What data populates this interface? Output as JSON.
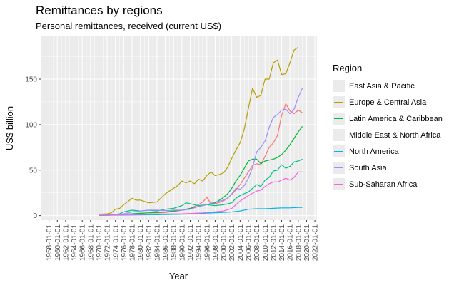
{
  "chart_data": {
    "type": "line",
    "title": "Remittances by regions",
    "subtitle": "Personal remittances, received (current US$)",
    "xlabel": "Year",
    "ylabel": "US$ billion",
    "xlim": [
      1956,
      2022.5
    ],
    "ylim": [
      -5,
      197
    ],
    "x_ticks": [
      "1958-01-01",
      "1960-01-01",
      "1962-01-01",
      "1964-01-01",
      "1966-01-01",
      "1968-01-01",
      "1970-01-01",
      "1972-01-01",
      "1974-01-01",
      "1976-01-01",
      "1978-01-01",
      "1980-01-01",
      "1982-01-01",
      "1984-01-01",
      "1986-01-01",
      "1988-01-01",
      "1990-01-01",
      "1992-01-01",
      "1994-01-01",
      "1996-01-01",
      "1998-01-01",
      "2000-01-01",
      "2002-01-01",
      "2004-01-01",
      "2006-01-01",
      "2008-01-01",
      "2010-01-01",
      "2012-01-01",
      "2014-01-01",
      "2016-01-01",
      "2018-01-01",
      "2020-01-01",
      "2022-01-01"
    ],
    "y_ticks": [
      0,
      50,
      100,
      150
    ],
    "grid": true,
    "legend_title": "Region",
    "legend_position": "right",
    "series": [
      {
        "name": "East Asia & Pacific",
        "color": "#F8766D",
        "x": [
          1970,
          1972,
          1974,
          1976,
          1978,
          1980,
          1982,
          1984,
          1986,
          1988,
          1990,
          1992,
          1994,
          1995,
          1996,
          1997,
          1998,
          2000,
          2002,
          2004,
          2006,
          2007,
          2008,
          2009,
          2010,
          2011,
          2012,
          2013,
          2014,
          2015,
          2016,
          2017,
          2018,
          2019
        ],
        "y": [
          0.2,
          0.3,
          0.6,
          1.2,
          1.8,
          2.5,
          3,
          3,
          3.5,
          4.5,
          6,
          8,
          12,
          15,
          20,
          13,
          13,
          16,
          23,
          34,
          48,
          55,
          57,
          56,
          65,
          75,
          80,
          88,
          110,
          123,
          115,
          112,
          116,
          113
        ]
      },
      {
        "name": "Europe & Central Asia",
        "color": "#B79F00",
        "x": [
          1970,
          1972,
          1973,
          1974,
          1975,
          1976,
          1978,
          1979,
          1980,
          1982,
          1984,
          1986,
          1988,
          1989,
          1990,
          1991,
          1992,
          1993,
          1994,
          1995,
          1996,
          1997,
          1998,
          1999,
          2000,
          2001,
          2002,
          2003,
          2004,
          2005,
          2006,
          2007,
          2008,
          2009,
          2010,
          2011,
          2012,
          2013,
          2014,
          2015,
          2016,
          2017,
          2018
        ],
        "y": [
          1.5,
          2,
          3,
          7,
          8,
          12,
          19,
          17,
          17,
          14,
          15,
          24,
          30,
          33,
          38,
          36,
          38,
          35,
          40,
          38,
          44,
          48,
          44,
          45,
          47,
          53,
          63,
          72,
          80,
          95,
          118,
          140,
          130,
          132,
          150,
          150,
          168,
          171,
          155,
          156,
          168,
          182,
          185
        ]
      },
      {
        "name": "Latin America & Caribbean",
        "color": "#00BA38",
        "x": [
          1970,
          1972,
          1974,
          1976,
          1978,
          1980,
          1982,
          1984,
          1986,
          1988,
          1990,
          1992,
          1994,
          1996,
          1998,
          2000,
          2001,
          2002,
          2003,
          2004,
          2005,
          2006,
          2007,
          2008,
          2009,
          2010,
          2011,
          2012,
          2013,
          2014,
          2015,
          2016,
          2017,
          2018,
          2019
        ],
        "y": [
          0.5,
          0.7,
          1,
          1.5,
          2,
          2.5,
          3,
          3.5,
          4,
          5,
          6,
          8,
          10,
          12,
          14,
          20,
          24,
          30,
          38,
          44,
          52,
          60,
          62,
          62,
          57,
          60,
          61,
          62,
          64,
          67,
          72,
          78,
          85,
          92,
          98
        ]
      },
      {
        "name": "Middle East & North Africa",
        "color": "#00C08B",
        "x": [
          1970,
          1972,
          1974,
          1975,
          1976,
          1977,
          1978,
          1980,
          1982,
          1984,
          1986,
          1988,
          1990,
          1991,
          1992,
          1993,
          1994,
          1996,
          1998,
          2000,
          2002,
          2003,
          2004,
          2006,
          2008,
          2009,
          2010,
          2011,
          2012,
          2013,
          2014,
          2015,
          2016,
          2017,
          2018,
          2019
        ],
        "y": [
          0.3,
          0.5,
          1,
          2,
          4,
          5,
          6,
          5,
          6,
          5,
          7,
          8,
          11,
          14,
          13,
          12,
          11,
          12,
          11,
          12,
          14,
          19,
          22,
          26,
          34,
          32,
          39,
          42,
          49,
          50,
          56,
          52,
          54,
          59,
          60,
          62
        ]
      },
      {
        "name": "North America",
        "color": "#00B4F0",
        "x": [
          1970,
          1975,
          1980,
          1985,
          1990,
          1995,
          2000,
          2002,
          2004,
          2006,
          2008,
          2010,
          2012,
          2014,
          2016,
          2018,
          2019
        ],
        "y": [
          0.3,
          0.5,
          0.8,
          1,
          1.5,
          2.5,
          3.5,
          4,
          5,
          7,
          7.5,
          7.5,
          8,
          8.5,
          8.5,
          9,
          9
        ]
      },
      {
        "name": "South Asia",
        "color": "#9C8DFF",
        "x": [
          1970,
          1972,
          1974,
          1976,
          1977,
          1978,
          1980,
          1982,
          1984,
          1986,
          1988,
          1990,
          1992,
          1994,
          1996,
          1998,
          2000,
          2001,
          2002,
          2003,
          2004,
          2005,
          2006,
          2007,
          2008,
          2009,
          2010,
          2011,
          2012,
          2013,
          2014,
          2015,
          2016,
          2017,
          2018,
          2019
        ],
        "y": [
          0.3,
          0.5,
          1,
          2,
          3,
          4,
          5,
          6,
          6,
          5.5,
          6,
          6,
          7,
          10,
          12,
          15,
          17,
          19,
          24,
          30,
          29,
          33,
          41,
          53,
          70,
          75,
          82,
          97,
          108,
          111,
          116,
          117,
          112,
          117,
          130,
          140
        ]
      },
      {
        "name": "Sub-Saharan Africa",
        "color": "#F564E3",
        "x": [
          1970,
          1975,
          1980,
          1985,
          1990,
          1995,
          2000,
          2002,
          2004,
          2006,
          2008,
          2009,
          2010,
          2011,
          2012,
          2013,
          2014,
          2015,
          2016,
          2017,
          2018,
          2019
        ],
        "y": [
          0.3,
          0.6,
          1.3,
          1.8,
          2,
          3,
          5,
          8,
          16,
          22,
          27,
          28,
          32,
          35,
          37,
          37,
          39,
          41,
          39,
          42,
          48,
          48
        ]
      }
    ]
  }
}
